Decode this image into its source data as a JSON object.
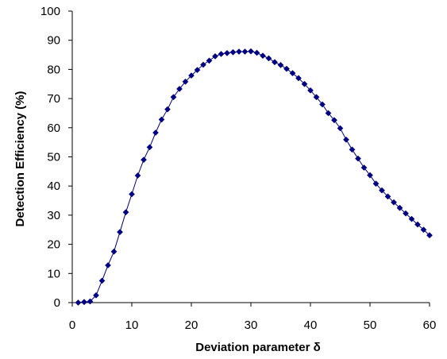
{
  "chart_data": {
    "type": "scatter",
    "xlabel": "Deviation parameter δ",
    "ylabel": "Detection Efficiency (%)",
    "xlim": [
      0,
      60
    ],
    "ylim": [
      0,
      100
    ],
    "xticks": [
      0,
      10,
      20,
      30,
      40,
      50,
      60
    ],
    "yticks": [
      0,
      10,
      20,
      30,
      40,
      50,
      60,
      70,
      80,
      90,
      100
    ],
    "grid": false,
    "legend": "none",
    "marker": "diamond",
    "line": "connected",
    "series_color": "#000080",
    "x": [
      1,
      2,
      3,
      4,
      5,
      6,
      7,
      8,
      9,
      10,
      11,
      12,
      13,
      14,
      15,
      16,
      17,
      18,
      19,
      20,
      21,
      22,
      23,
      24,
      25,
      26,
      27,
      28,
      29,
      30,
      31,
      32,
      33,
      34,
      35,
      36,
      37,
      38,
      39,
      40,
      41,
      42,
      43,
      44,
      45,
      46,
      47,
      48,
      49,
      50,
      51,
      52,
      53,
      54,
      55,
      56,
      57,
      58,
      59,
      60
    ],
    "y": [
      0,
      0.2,
      0.4,
      2.5,
      7.5,
      12.8,
      17.5,
      24.2,
      31,
      37.2,
      43.6,
      49,
      53.3,
      58.3,
      62.8,
      66.3,
      70.5,
      73.3,
      75.8,
      77.9,
      79.8,
      81.6,
      83,
      84.5,
      85.3,
      85.6,
      85.9,
      86.1,
      86.1,
      86.2,
      85.7,
      84.7,
      83.8,
      82.5,
      81.5,
      80.2,
      78.7,
      77,
      75,
      72.8,
      70.5,
      68,
      65,
      62.6,
      59.8,
      55.9,
      52.5,
      49.4,
      46.3,
      43.7,
      40.8,
      38.5,
      36.4,
      34.4,
      32.5,
      30.6,
      28.7,
      26.8,
      25,
      23.1
    ]
  }
}
